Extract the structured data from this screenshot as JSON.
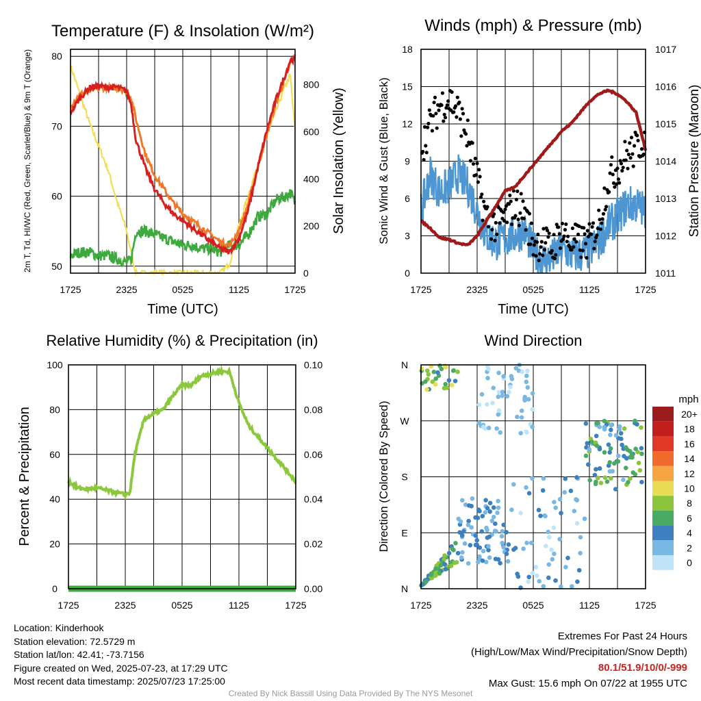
{
  "colors": {
    "temp": "#d62020",
    "dewpoint": "#3caa3c",
    "nine_m": "#f07828",
    "insolation": "#f5dc50",
    "wind": "#4d96d2",
    "gust": "#000000",
    "pressure": "#a01a1a",
    "rh": "#8cc83c",
    "precip": "#3caa3c"
  },
  "time_ticks": [
    "1725",
    "2325",
    "0525",
    "1125",
    "1725"
  ],
  "chart_data": [
    {
      "type": "line",
      "title": "Temperature (F) & Insolation (W/m²)",
      "xlabel": "Time (UTC)",
      "ylabel_left": "2m T, Td, HI/WC (Red, Green, Scarlet/Blue) & 9m T (Orange)",
      "ylabel_right": "Solar Insolation (Yellow)",
      "ylim": [
        49,
        81
      ],
      "ylim_right": [
        0,
        950
      ],
      "yticks": [
        50,
        60,
        70,
        80
      ],
      "yticks_right": [
        0,
        200,
        400,
        600,
        800
      ],
      "x_hours": [
        0,
        1,
        2,
        3,
        4,
        5,
        6,
        6.5,
        7,
        8,
        9,
        10,
        11,
        12,
        13,
        14,
        15,
        16,
        17,
        18,
        19,
        20,
        21,
        22,
        23,
        23.5,
        24
      ],
      "series": [
        {
          "key": "temp",
          "values": [
            72,
            74,
            75.5,
            75.8,
            75.5,
            75.6,
            75,
            73,
            68,
            64,
            61,
            59,
            57.5,
            56.5,
            55.5,
            54.5,
            53.5,
            52.5,
            52,
            54,
            58,
            64,
            69.5,
            74,
            77.5,
            79.5,
            79.5
          ]
        },
        {
          "key": "nine_m",
          "values": [
            73,
            74.5,
            75,
            75.5,
            75.5,
            75.5,
            75,
            74,
            71,
            66,
            63,
            61,
            59,
            57.5,
            56.5,
            55.5,
            54.5,
            53.5,
            53,
            55,
            59,
            64,
            69,
            73.5,
            77,
            79,
            80
          ]
        },
        {
          "key": "dewpoint",
          "values": [
            51.5,
            52,
            52,
            51.5,
            51.5,
            51,
            50.5,
            51,
            55,
            55,
            54.5,
            54,
            53.5,
            53,
            53,
            52.5,
            52.5,
            52,
            53,
            53,
            54.5,
            57,
            57.5,
            59.5,
            60,
            60.5,
            59
          ]
        },
        {
          "key": "insolation",
          "values": [
            880,
            760,
            640,
            540,
            440,
            300,
            180,
            80,
            0,
            0,
            0,
            0,
            0,
            0,
            0,
            0,
            0,
            0,
            40,
            200,
            330,
            460,
            590,
            690,
            800,
            840,
            600
          ]
        }
      ]
    },
    {
      "type": "line",
      "title": "Winds (mph) & Pressure (mb)",
      "xlabel": "Time (UTC)",
      "ylabel_left": "Sonic Wind & Gust (Blue, Black)",
      "ylabel_right": "Station Pressure (Maroon)",
      "ylim": [
        0,
        18
      ],
      "ylim_right": [
        1011,
        1017
      ],
      "yticks": [
        0,
        3,
        6,
        9,
        12,
        15,
        18
      ],
      "yticks_right": [
        1011,
        1012,
        1013,
        1014,
        1015,
        1016,
        1017
      ],
      "x_hours": [
        0,
        1,
        2,
        3,
        4,
        5,
        6,
        7,
        8,
        9,
        10,
        11,
        12,
        13,
        14,
        15,
        16,
        17,
        18,
        19,
        20,
        21,
        22,
        23,
        24
      ],
      "series": [
        {
          "key": "wind",
          "values": [
            5,
            8,
            6.5,
            7,
            8,
            7,
            5,
            3,
            2.5,
            2.8,
            3,
            3.5,
            1.8,
            1,
            1.2,
            2,
            1.5,
            1.5,
            1.8,
            2.5,
            3.8,
            4.5,
            5.5,
            5.5,
            5
          ]
        },
        {
          "key": "gust",
          "values": [
            10,
            12,
            13.5,
            14,
            13,
            11,
            7.5,
            4.5,
            3.8,
            4.5,
            5.5,
            5,
            2.5,
            2.5,
            2,
            3.5,
            2.5,
            2.5,
            2.5,
            4,
            7.5,
            8.5,
            9.5,
            10,
            11
          ]
        },
        {
          "key": "pressure",
          "values": [
            1012.4,
            1012.2,
            1011.95,
            1011.9,
            1011.8,
            1011.75,
            1012,
            1012.4,
            1012.8,
            1013.2,
            1013.3,
            1013.6,
            1013.9,
            1014.2,
            1014.5,
            1014.8,
            1015.0,
            1015.3,
            1015.6,
            1015.8,
            1015.9,
            1015.8,
            1015.6,
            1015.3,
            1014.3
          ]
        }
      ]
    },
    {
      "type": "line",
      "title": "Relative Humidity (%) & Precipitation (in)",
      "xlabel": "",
      "ylabel_left": "Percent & Precipitation",
      "ylim": [
        0,
        100
      ],
      "ylim_right": [
        0,
        0.1
      ],
      "yticks": [
        0,
        20,
        40,
        60,
        80,
        100
      ],
      "yticks_right": [
        0,
        0.02,
        0.04,
        0.06,
        0.08,
        0.1
      ],
      "yticks_right_labels": [
        "0.00",
        "0.02",
        "0.04",
        "0.06",
        "0.08",
        "0.10"
      ],
      "x_hours": [
        0,
        1,
        2,
        3,
        4,
        5,
        6,
        6.5,
        7,
        8,
        9,
        10,
        11,
        12,
        13,
        14,
        15,
        16,
        17,
        18,
        19,
        20,
        21,
        22,
        23,
        24
      ],
      "series": [
        {
          "key": "rh",
          "values": [
            48,
            45,
            44.5,
            45,
            44,
            43,
            42,
            43,
            60,
            76,
            78,
            80,
            86,
            91,
            91,
            95,
            96,
            97,
            97,
            83,
            73,
            68,
            63,
            58,
            53,
            48
          ]
        },
        {
          "key": "precip",
          "values": [
            0,
            0,
            0,
            0,
            0,
            0,
            0,
            0,
            0,
            0,
            0,
            0,
            0,
            0,
            0,
            0,
            0,
            0,
            0,
            0,
            0,
            0,
            0,
            0,
            0,
            0
          ]
        }
      ]
    },
    {
      "type": "scatter",
      "title": "Wind Direction",
      "xlabel": "",
      "ylabel_left": "Direction (Colored By Speed)",
      "yticks_labels": [
        "N",
        "E",
        "S",
        "W",
        "N"
      ],
      "ylim": [
        0,
        360
      ],
      "clusters": [
        {
          "h0": 0,
          "h1": 4,
          "d0": 5,
          "d1": 70,
          "s0": 3,
          "s1": 9,
          "n": 70
        },
        {
          "h0": 0,
          "h1": 4,
          "d0": 320,
          "d1": 360,
          "s0": 4,
          "s1": 10,
          "n": 30
        },
        {
          "h0": 4,
          "h1": 9.5,
          "d0": 40,
          "d1": 150,
          "s0": 1,
          "s1": 5,
          "n": 80
        },
        {
          "h0": 6,
          "h1": 12,
          "d0": 250,
          "d1": 360,
          "s0": 0,
          "s1": 3,
          "n": 55
        },
        {
          "h0": 9.5,
          "h1": 17.5,
          "d0": 0,
          "d1": 180,
          "s0": 0,
          "s1": 4,
          "n": 60
        },
        {
          "h0": 17.5,
          "h1": 24,
          "d0": 160,
          "d1": 270,
          "s0": 2,
          "s1": 8,
          "n": 90
        }
      ]
    }
  ],
  "wind_legend": {
    "title": "mph",
    "levels": [
      "20+",
      "18",
      "16",
      "14",
      "12",
      "10",
      "8",
      "6",
      "4",
      "2",
      "0"
    ],
    "colors": [
      "#9b1c1c",
      "#c21f1f",
      "#e03a26",
      "#f06a2c",
      "#f7a444",
      "#e8dc54",
      "#8cc43c",
      "#4aaa64",
      "#3c80c0",
      "#7ab8e4",
      "#bfe4f8"
    ]
  },
  "info": {
    "location": "Location: Kinderhook",
    "elevation": "Station elevation: 72.5729 m",
    "latlon": "Station lat/lon: 42.41; -73.7156",
    "created": "Figure created on Wed, 2025-07-23, at 17:29 UTC",
    "recent": "Most recent data timestamp: 2025/07/23 17:25:00"
  },
  "extremes": {
    "title": "Extremes For Past 24 Hours",
    "subtitle": "(High/Low/Max Wind/Precipitation/Snow Depth)",
    "values": "80.1/51.9/10/0/-999",
    "gust": "Max Gust: 15.6 mph On 07/22 at 1955 UTC"
  },
  "credit": "Created By Nick Bassill Using Data Provided By The NYS Mesonet"
}
